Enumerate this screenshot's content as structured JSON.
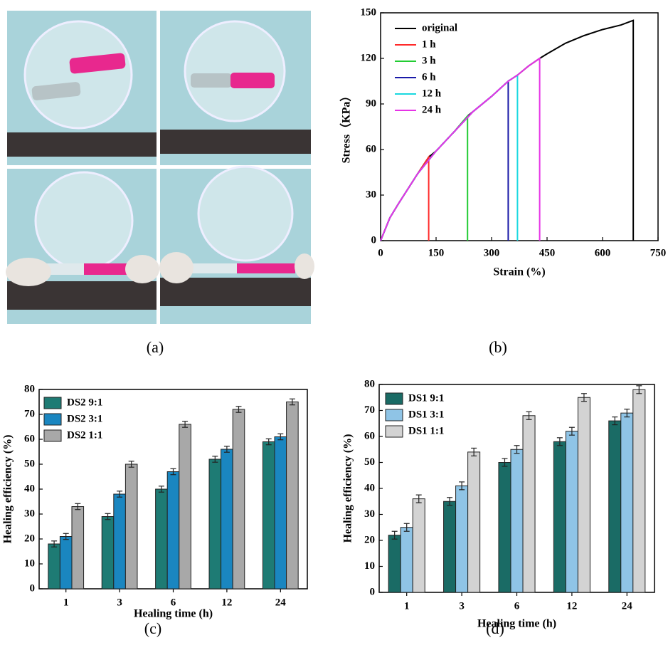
{
  "panel_labels": [
    "(a)",
    "(b)",
    "(c)",
    "(d)"
  ],
  "chart_data": [
    {
      "type": "line",
      "xlabel": "Strain (%)",
      "ylabel": "Stress（KPa）",
      "xlim": [
        0,
        750
      ],
      "xticks": [
        0,
        150,
        300,
        450,
        600,
        750
      ],
      "ylim": [
        0,
        150
      ],
      "yticks": [
        0,
        30,
        60,
        90,
        120,
        150
      ],
      "series": [
        {
          "name": "original",
          "color": "#000000",
          "x": [
            0,
            25,
            50,
            100,
            130,
            150,
            200,
            235,
            250,
            300,
            345,
            370,
            400,
            430,
            450,
            500,
            550,
            600,
            650,
            683,
            683
          ],
          "values": [
            0,
            15,
            25,
            44,
            55,
            59,
            72,
            82,
            85,
            95,
            105,
            109,
            115,
            120,
            123,
            130,
            135,
            139,
            142,
            145,
            0
          ]
        },
        {
          "name": "1 h",
          "color": "#ff2a2a",
          "x": [
            0,
            25,
            50,
            100,
            130,
            130
          ],
          "values": [
            0,
            15,
            25,
            44,
            55,
            0
          ]
        },
        {
          "name": "3 h",
          "color": "#22cc33",
          "x": [
            0,
            25,
            50,
            100,
            150,
            200,
            235,
            235
          ],
          "values": [
            0,
            15,
            25,
            44,
            59,
            72,
            82,
            0
          ]
        },
        {
          "name": "6 h",
          "color": "#1a1aa8",
          "x": [
            0,
            25,
            50,
            100,
            150,
            200,
            250,
            300,
            345,
            345
          ],
          "values": [
            0,
            15,
            25,
            44,
            59,
            72,
            85,
            95,
            105,
            0
          ]
        },
        {
          "name": "12 h",
          "color": "#19d8e0",
          "x": [
            0,
            25,
            50,
            100,
            150,
            200,
            250,
            300,
            345,
            370,
            370
          ],
          "values": [
            0,
            15,
            25,
            44,
            59,
            72,
            85,
            95,
            105,
            109,
            0
          ]
        },
        {
          "name": "24 h",
          "color": "#e633e6",
          "x": [
            0,
            25,
            50,
            100,
            150,
            200,
            250,
            300,
            345,
            370,
            400,
            430,
            430
          ],
          "values": [
            0,
            15,
            25,
            44,
            59,
            72,
            85,
            95,
            105,
            109,
            115,
            120,
            0
          ]
        }
      ]
    },
    {
      "type": "bar",
      "xlabel": "Healing time (h)",
      "ylabel": "Healing efficiency (%)",
      "categories": [
        "1",
        "3",
        "6",
        "12",
        "24"
      ],
      "ylim": [
        0,
        80
      ],
      "yticks": [
        0,
        10,
        20,
        30,
        40,
        50,
        60,
        70,
        80
      ],
      "series": [
        {
          "name": "DS2 9:1",
          "color": "#1e7b74",
          "values": [
            18,
            29,
            40,
            52,
            59
          ],
          "errors": [
            1.2,
            1.2,
            1.2,
            1.2,
            1.2
          ]
        },
        {
          "name": "DS2 3:1",
          "color": "#1a86c0",
          "values": [
            21,
            38,
            47,
            56,
            61
          ],
          "errors": [
            1.2,
            1.2,
            1.2,
            1.2,
            1.2
          ]
        },
        {
          "name": "DS2 1:1",
          "color": "#a8a8a8",
          "values": [
            33,
            50,
            66,
            72,
            75
          ],
          "errors": [
            1.2,
            1.2,
            1.2,
            1.2,
            1.2
          ]
        }
      ]
    },
    {
      "type": "bar",
      "xlabel": "Healing time (h)",
      "ylabel": "Healing efficiency (%)",
      "categories": [
        "1",
        "3",
        "6",
        "12",
        "24"
      ],
      "ylim": [
        0,
        80
      ],
      "yticks": [
        0,
        10,
        20,
        30,
        40,
        50,
        60,
        70,
        80
      ],
      "series": [
        {
          "name": "DS1 9:1",
          "color": "#1a6b65",
          "values": [
            22,
            35,
            50,
            58,
            66
          ],
          "errors": [
            1.5,
            1.5,
            1.5,
            1.5,
            1.5
          ]
        },
        {
          "name": "DS1 3:1",
          "color": "#8fc4e6",
          "values": [
            25,
            41,
            55,
            62,
            69
          ],
          "errors": [
            1.5,
            1.5,
            1.5,
            1.5,
            1.5
          ]
        },
        {
          "name": "DS1 1:1",
          "color": "#d3d3d3",
          "values": [
            36,
            54,
            68,
            75,
            78
          ],
          "errors": [
            1.5,
            1.5,
            1.5,
            1.5,
            1.5
          ]
        }
      ]
    }
  ]
}
